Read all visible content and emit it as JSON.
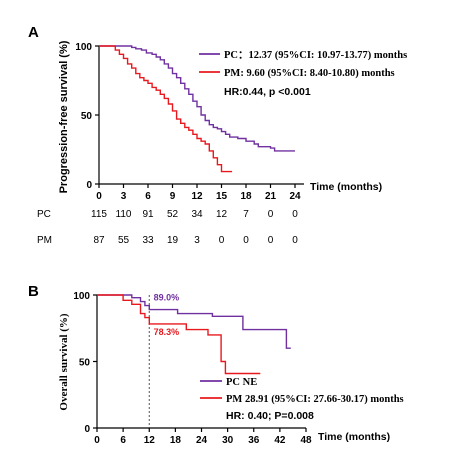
{
  "colors": {
    "pc": "#7030a0",
    "pm": "#e8191e",
    "axis": "#000000",
    "ref_line": "#555555"
  },
  "chart_data": [
    {
      "panel_label": "A",
      "type": "line",
      "xlabel": "Time (months)",
      "ylabel": "Progression-free survival (%)",
      "xlim": [
        0,
        24
      ],
      "ylim": [
        0,
        100
      ],
      "x_ticks": [
        0,
        3,
        6,
        9,
        12,
        15,
        18,
        21,
        24
      ],
      "y_ticks": [
        0,
        50,
        100
      ],
      "legend_position": "top-right",
      "legend": [
        {
          "key": "pc",
          "name": "PC",
          "text": "：12.37 (95%CI: 10.97-13.77) months"
        },
        {
          "key": "pm",
          "name": "PM",
          "text": ": 9.60 (95%CI: 8.40-10.80) months"
        }
      ],
      "annotation": "HR:0.44, p <0.001",
      "series": [
        {
          "name": "PC",
          "key": "pc",
          "points": [
            [
              0,
              100
            ],
            [
              3.0,
              100
            ],
            [
              4.0,
              99
            ],
            [
              4.5,
              98
            ],
            [
              5.2,
              97
            ],
            [
              5.8,
              95
            ],
            [
              6.5,
              94
            ],
            [
              7.0,
              92
            ],
            [
              7.5,
              90
            ],
            [
              8.0,
              87
            ],
            [
              8.5,
              84
            ],
            [
              9.0,
              80
            ],
            [
              9.5,
              77
            ],
            [
              10.0,
              73
            ],
            [
              10.5,
              69
            ],
            [
              11.0,
              65
            ],
            [
              11.5,
              60
            ],
            [
              12.0,
              56
            ],
            [
              12.5,
              50
            ],
            [
              13.0,
              46
            ],
            [
              13.5,
              43
            ],
            [
              14.0,
              41
            ],
            [
              14.5,
              40
            ],
            [
              15.0,
              38
            ],
            [
              15.5,
              36
            ],
            [
              16.0,
              34
            ],
            [
              17.0,
              33
            ],
            [
              18.0,
              31
            ],
            [
              19.0,
              29
            ],
            [
              19.5,
              27
            ],
            [
              21.0,
              26
            ],
            [
              21.5,
              24
            ],
            [
              24,
              24
            ]
          ]
        },
        {
          "name": "PM",
          "key": "pm",
          "points": [
            [
              0,
              100
            ],
            [
              1.5,
              100
            ],
            [
              2.0,
              97
            ],
            [
              2.5,
              94
            ],
            [
              3.0,
              91
            ],
            [
              3.5,
              87
            ],
            [
              4.0,
              84
            ],
            [
              4.5,
              80
            ],
            [
              5.0,
              77
            ],
            [
              5.5,
              75
            ],
            [
              6.0,
              73
            ],
            [
              6.5,
              70
            ],
            [
              7.0,
              68
            ],
            [
              7.5,
              65
            ],
            [
              8.0,
              62
            ],
            [
              8.5,
              58
            ],
            [
              9.0,
              53
            ],
            [
              9.5,
              47
            ],
            [
              10.0,
              44
            ],
            [
              10.5,
              41
            ],
            [
              11.0,
              39
            ],
            [
              11.5,
              36
            ],
            [
              12.0,
              33
            ],
            [
              12.5,
              31
            ],
            [
              13.0,
              29
            ],
            [
              13.5,
              24
            ],
            [
              14.0,
              19
            ],
            [
              14.5,
              14
            ],
            [
              15.0,
              9
            ],
            [
              16.3,
              9
            ]
          ]
        }
      ],
      "risk_table": {
        "times": [
          0,
          3,
          6,
          9,
          12,
          15,
          18,
          21,
          24
        ],
        "rows": [
          {
            "label": "PC",
            "values": [
              115,
              110,
              91,
              52,
              34,
              12,
              7,
              0,
              0
            ]
          },
          {
            "label": "PM",
            "values": [
              87,
              55,
              33,
              19,
              3,
              0,
              0,
              0,
              0
            ]
          }
        ]
      }
    },
    {
      "panel_label": "B",
      "type": "line",
      "xlabel": "Time (months)",
      "ylabel": "Overall survival (%)",
      "xlim": [
        0,
        48
      ],
      "ylim": [
        0,
        100
      ],
      "x_ticks": [
        0,
        6,
        12,
        18,
        24,
        30,
        36,
        42,
        48
      ],
      "y_ticks": [
        0,
        50,
        100
      ],
      "legend_position": "bottom-right",
      "legend": [
        {
          "key": "pc",
          "name": "PC",
          "text": " NE"
        },
        {
          "key": "pm",
          "name": "PM",
          "text": " 28.91 (95%CI: 27.66-30.17) months"
        }
      ],
      "annotation": "HR: 0.40; P=0.008",
      "reference_x": 12,
      "labels": [
        {
          "key": "pc",
          "text": "89.0%",
          "x": 13,
          "y": 96
        },
        {
          "key": "pm",
          "text": "78.3%",
          "x": 13,
          "y": 70
        }
      ],
      "series": [
        {
          "name": "PC",
          "key": "pc",
          "points": [
            [
              0,
              100
            ],
            [
              6.0,
              100
            ],
            [
              8.0,
              98
            ],
            [
              10.0,
              95
            ],
            [
              11.0,
              92
            ],
            [
              12.0,
              89
            ],
            [
              18.0,
              89
            ],
            [
              18.5,
              86
            ],
            [
              26.0,
              86
            ],
            [
              26.5,
              84
            ],
            [
              33.0,
              84
            ],
            [
              33.5,
              74
            ],
            [
              43.0,
              74
            ],
            [
              43.5,
              60
            ],
            [
              44.5,
              60
            ]
          ]
        },
        {
          "name": "PM",
          "key": "pm",
          "points": [
            [
              0,
              100
            ],
            [
              5.0,
              100
            ],
            [
              6.0,
              96
            ],
            [
              8.0,
              93
            ],
            [
              10.0,
              86
            ],
            [
              11.0,
              83
            ],
            [
              12.0,
              78.3
            ],
            [
              20.0,
              78.3
            ],
            [
              20.5,
              74
            ],
            [
              25.0,
              74
            ],
            [
              25.5,
              70
            ],
            [
              28.0,
              70
            ],
            [
              28.5,
              50
            ],
            [
              29.0,
              50
            ],
            [
              29.5,
              41
            ],
            [
              37.5,
              41
            ]
          ]
        }
      ]
    }
  ]
}
